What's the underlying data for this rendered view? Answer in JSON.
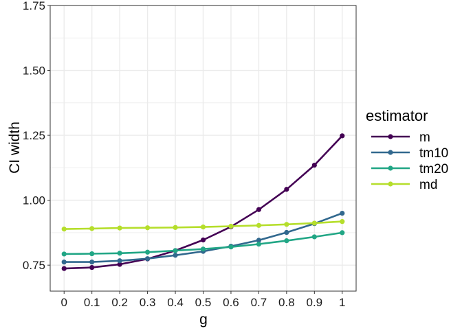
{
  "chart_data": {
    "type": "line",
    "xlabel": "g",
    "ylabel": "CI width",
    "x": [
      0,
      0.1,
      0.2,
      0.3,
      0.4,
      0.5,
      0.6,
      0.7,
      0.8,
      0.9,
      1
    ],
    "x_tick_labels": [
      "0",
      "0.1",
      "0.2",
      "0.3",
      "0.4",
      "0.5",
      "0.6",
      "0.7",
      "0.8",
      "0.9",
      "1"
    ],
    "ylim": [
      0.65,
      1.75
    ],
    "y_ticks": [
      0.75,
      1.0,
      1.25,
      1.5,
      1.75
    ],
    "y_tick_labels": [
      "0.75",
      "1.00",
      "1.25",
      "1.50",
      "1.75"
    ],
    "grid": true,
    "legend": {
      "title": "estimator",
      "position": "right"
    },
    "series": [
      {
        "name": "m",
        "color": "#440154",
        "values": [
          0.737,
          0.741,
          0.753,
          0.774,
          0.806,
          0.847,
          0.898,
          0.964,
          1.042,
          1.135,
          1.248
        ]
      },
      {
        "name": "tm10",
        "color": "#31688E",
        "values": [
          0.762,
          0.762,
          0.767,
          0.775,
          0.788,
          0.803,
          0.823,
          0.846,
          0.876,
          0.91,
          0.95
        ]
      },
      {
        "name": "tm20",
        "color": "#21A685",
        "values": [
          0.793,
          0.794,
          0.796,
          0.8,
          0.806,
          0.812,
          0.82,
          0.831,
          0.844,
          0.859,
          0.875
        ]
      },
      {
        "name": "md",
        "color": "#B5DE2B",
        "values": [
          0.889,
          0.891,
          0.893,
          0.894,
          0.895,
          0.897,
          0.9,
          0.903,
          0.907,
          0.912,
          0.918
        ]
      }
    ]
  }
}
